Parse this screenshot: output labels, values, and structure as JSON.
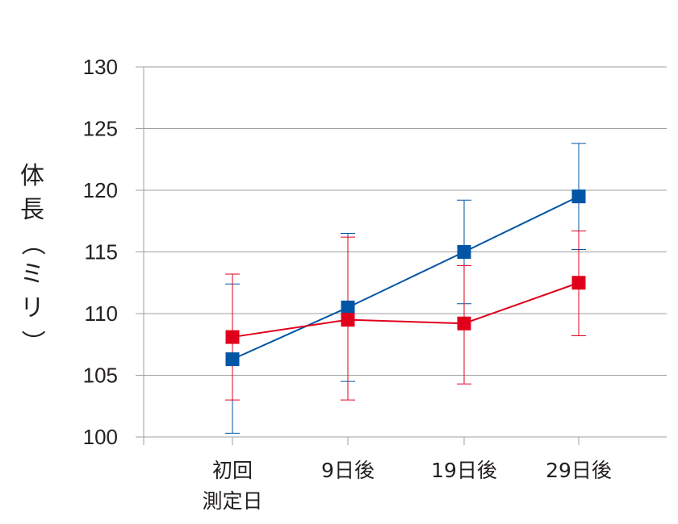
{
  "chart_data": {
    "type": "line",
    "title": "",
    "xlabel": "",
    "ylabel": "体長（ミリ）",
    "ylim": [
      100,
      130
    ],
    "yticks": [
      100,
      105,
      110,
      115,
      120,
      125,
      130
    ],
    "grid": true,
    "categories": [
      [
        "初回",
        "測定日"
      ],
      [
        "9日後"
      ],
      [
        "19日後"
      ],
      [
        "29日後"
      ]
    ],
    "series": [
      {
        "color": "#0055a5",
        "values": [
          106.3,
          110.5,
          115.0,
          119.5
        ],
        "error": [
          [
            100.3,
            112.4
          ],
          [
            104.5,
            116.5
          ],
          [
            110.8,
            119.2
          ],
          [
            115.2,
            123.8
          ]
        ]
      },
      {
        "color": "#e0001b",
        "values": [
          108.1,
          109.5,
          109.2,
          112.5
        ],
        "error": [
          [
            103.0,
            113.2
          ],
          [
            103.0,
            116.2
          ],
          [
            104.3,
            113.9
          ],
          [
            108.2,
            116.7
          ]
        ]
      }
    ]
  }
}
